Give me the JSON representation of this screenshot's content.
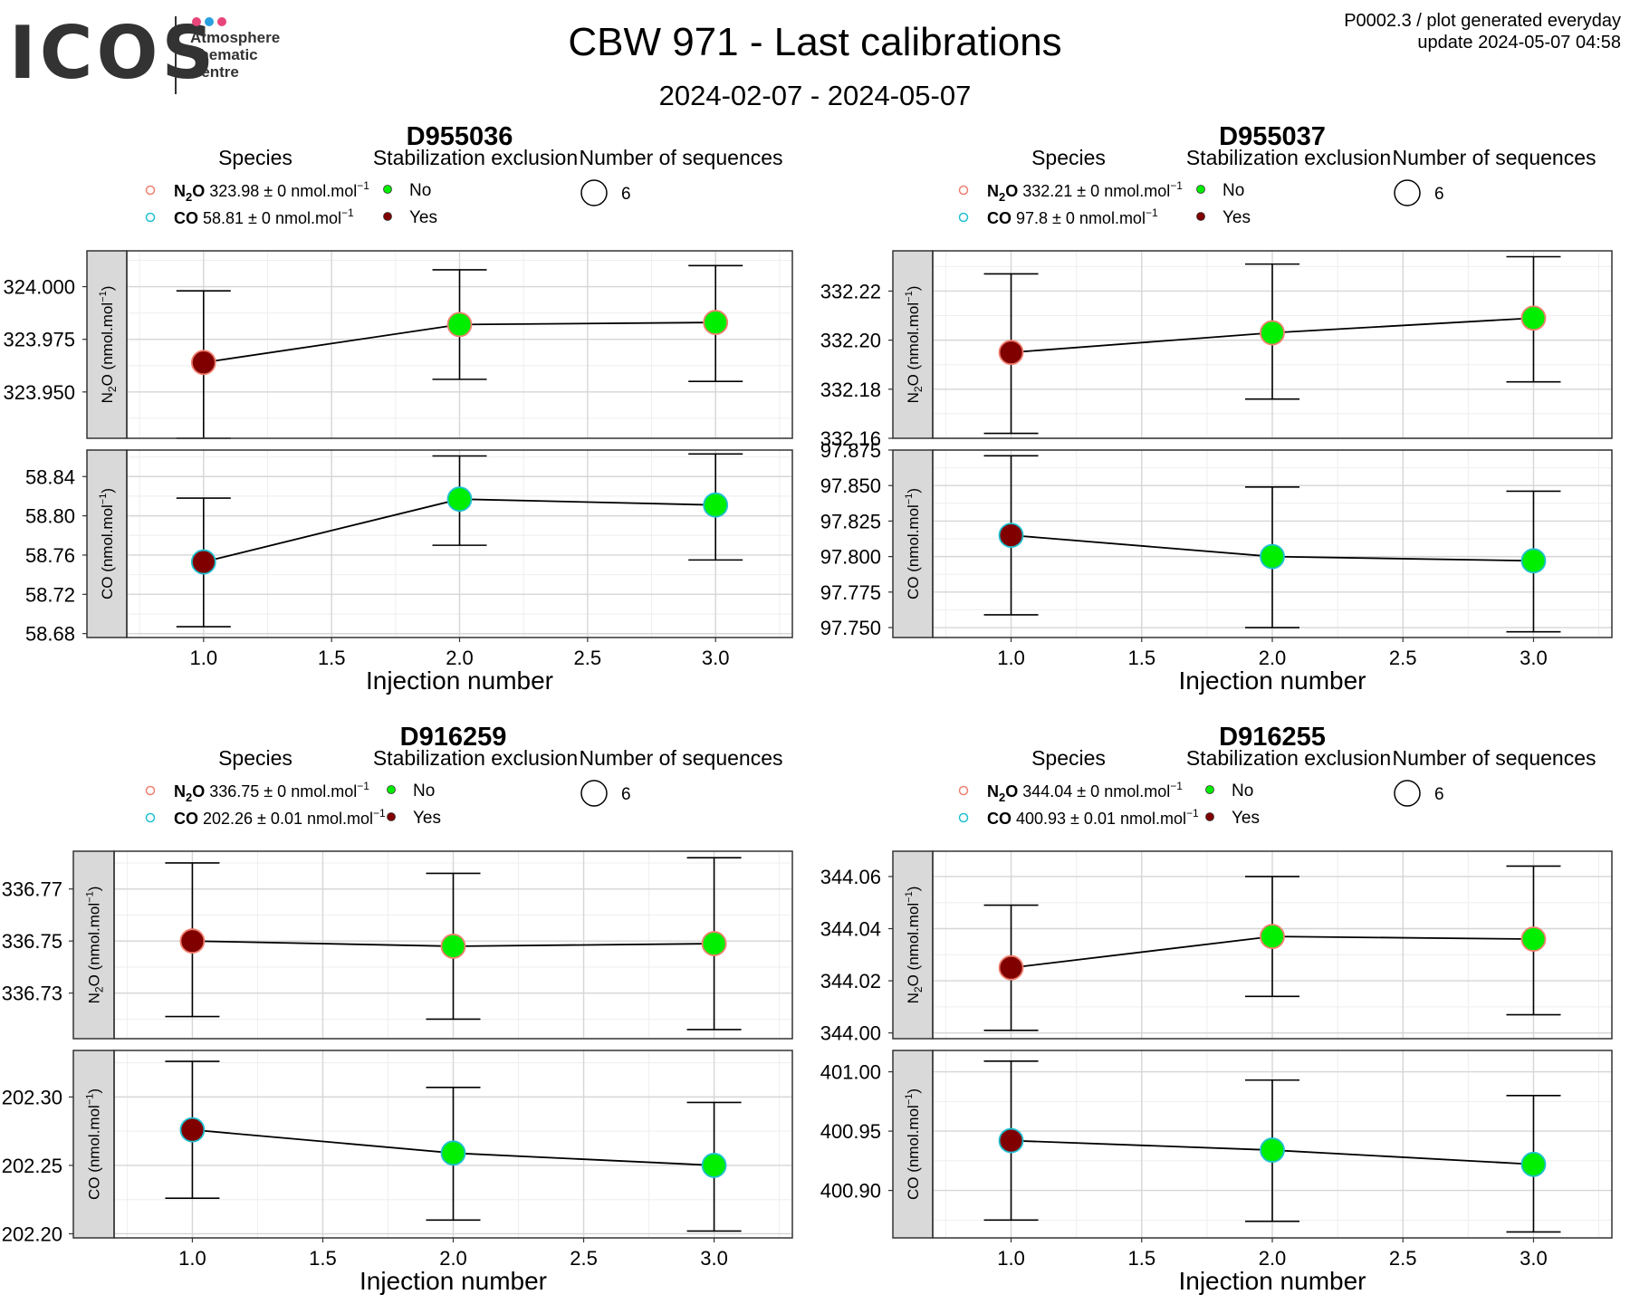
{
  "header": {
    "logo_text": "ICOS",
    "logo_subtitle": [
      "Atmosphere",
      "Thematic",
      "Centre"
    ],
    "logo_dot_colors": [
      "#e8457a",
      "#2aa0e0",
      "#e8457a"
    ],
    "title": "CBW 971 - Last calibrations",
    "date_range": "2024-02-07 - 2024-05-07",
    "corner_line1": "P0002.3 / plot generated everyday",
    "corner_line2": "update  2024-05-07 04:58"
  },
  "legend_labels": {
    "species": "Species",
    "stabilization": "Stabilization exclusion",
    "sequences": "Number of sequences",
    "no": "No",
    "yes": "Yes",
    "unit": "nmol.mol"
  },
  "colors": {
    "no": "#00ee00",
    "yes": "#800000",
    "n2o": "#f08070",
    "co": "#20c0d0",
    "strip": "#d9d9d9",
    "grid_major": "#d6d6d6",
    "grid_minor": "#eeeeee"
  },
  "chart_data": [
    {
      "type": "scatter",
      "title": "D955036",
      "xlabel": "Injection number",
      "x": [
        1,
        2,
        3
      ],
      "xlim": [
        0.7,
        3.3
      ],
      "xticks": [
        "1.0",
        "1.5",
        "2.0",
        "2.5",
        "3.0"
      ],
      "sequences": 6,
      "legend": {
        "n2o_value": "323.98",
        "n2o_unc": "0",
        "co_value": "58.81",
        "co_unc": "0"
      },
      "panels": [
        {
          "strip": "N2O (nmol.mol-1)",
          "species": "n2o",
          "ylim": [
            323.928,
            324.017
          ],
          "yticks": [
            "323.950",
            "323.975",
            "324.000"
          ],
          "values": [
            323.964,
            323.982,
            323.983
          ],
          "err_low": [
            323.928,
            323.956,
            323.955
          ],
          "err_high": [
            323.998,
            324.008,
            324.01
          ],
          "excluded": [
            "Yes",
            "No",
            "No"
          ]
        },
        {
          "strip": "CO (nmol.mol-1)",
          "species": "co",
          "ylim": [
            58.676,
            58.867
          ],
          "yticks": [
            "58.68",
            "58.72",
            "58.76",
            "58.80",
            "58.84"
          ],
          "values": [
            58.753,
            58.817,
            58.811
          ],
          "err_low": [
            58.687,
            58.77,
            58.755
          ],
          "err_high": [
            58.818,
            58.861,
            58.863
          ],
          "excluded": [
            "Yes",
            "No",
            "No"
          ]
        }
      ]
    },
    {
      "type": "scatter",
      "title": "D955037",
      "xlabel": "Injection number",
      "x": [
        1,
        2,
        3
      ],
      "xlim": [
        0.7,
        3.3
      ],
      "xticks": [
        "1.0",
        "1.5",
        "2.0",
        "2.5",
        "3.0"
      ],
      "sequences": 6,
      "legend": {
        "n2o_value": "332.21",
        "n2o_unc": "0",
        "co_value": "97.8",
        "co_unc": "0"
      },
      "panels": [
        {
          "strip": "N2O (nmol.mol-1)",
          "species": "n2o",
          "ylim": [
            332.16,
            332.2364
          ],
          "yticks": [
            "332.16",
            "332.18",
            "332.20",
            "332.22"
          ],
          "values": [
            332.195,
            332.203,
            332.209
          ],
          "err_low": [
            332.162,
            332.176,
            332.183
          ],
          "err_high": [
            332.227,
            332.231,
            332.234
          ],
          "excluded": [
            "Yes",
            "No",
            "No"
          ]
        },
        {
          "strip": "CO (nmol.mol-1)",
          "species": "co",
          "ylim": [
            97.743,
            97.875
          ],
          "yticks": [
            "97.750",
            "97.775",
            "97.800",
            "97.825",
            "97.850",
            "97.875"
          ],
          "values": [
            97.815,
            97.8,
            97.797
          ],
          "err_low": [
            97.759,
            97.75,
            97.747
          ],
          "err_high": [
            97.871,
            97.849,
            97.846
          ],
          "excluded": [
            "Yes",
            "No",
            "No"
          ]
        }
      ]
    },
    {
      "type": "scatter",
      "title": "D916259",
      "xlabel": "Injection number",
      "x": [
        1,
        2,
        3
      ],
      "xlim": [
        0.7,
        3.3
      ],
      "xticks": [
        "1.0",
        "1.5",
        "2.0",
        "2.5",
        "3.0"
      ],
      "sequences": 6,
      "legend": {
        "n2o_value": "336.75",
        "n2o_unc": "0",
        "co_value": "202.26",
        "co_unc": "0.01"
      },
      "panels": [
        {
          "strip": "N2O (nmol.mol-1)",
          "species": "n2o",
          "ylim": [
            336.7125,
            336.7845
          ],
          "yticks": [
            "336.73",
            "336.75",
            "336.77"
          ],
          "values": [
            336.75,
            336.748,
            336.749
          ],
          "err_low": [
            336.721,
            336.72,
            336.716
          ],
          "err_high": [
            336.78,
            336.776,
            336.782
          ],
          "excluded": [
            "Yes",
            "No",
            "No"
          ]
        },
        {
          "strip": "CO (nmol.mol-1)",
          "species": "co",
          "ylim": [
            202.197,
            202.334
          ],
          "yticks": [
            "202.20",
            "202.25",
            "202.30"
          ],
          "values": [
            202.276,
            202.259,
            202.25
          ],
          "err_low": [
            202.226,
            202.21,
            202.202
          ],
          "err_high": [
            202.326,
            202.307,
            202.296
          ],
          "excluded": [
            "Yes",
            "No",
            "No"
          ]
        }
      ]
    },
    {
      "type": "scatter",
      "title": "D916255",
      "xlabel": "Injection number",
      "x": [
        1,
        2,
        3
      ],
      "xlim": [
        0.7,
        3.3
      ],
      "xticks": [
        "1.0",
        "1.5",
        "2.0",
        "2.5",
        "3.0"
      ],
      "sequences": 6,
      "legend": {
        "n2o_value": "344.04",
        "n2o_unc": "0",
        "co_value": "400.93",
        "co_unc": "0.01"
      },
      "panels": [
        {
          "strip": "N2O (nmol.mol-1)",
          "species": "n2o",
          "ylim": [
            343.9978,
            344.0697
          ],
          "yticks": [
            "344.00",
            "344.02",
            "344.04",
            "344.06"
          ],
          "values": [
            344.025,
            344.037,
            344.036
          ],
          "err_low": [
            344.001,
            344.014,
            344.007
          ],
          "err_high": [
            344.049,
            344.06,
            344.064
          ],
          "excluded": [
            "Yes",
            "No",
            "No"
          ]
        },
        {
          "strip": "CO (nmol.mol-1)",
          "species": "co",
          "ylim": [
            400.86,
            401.018
          ],
          "yticks": [
            "400.90",
            "400.95",
            "401.00"
          ],
          "values": [
            400.942,
            400.934,
            400.922
          ],
          "err_low": [
            400.875,
            400.874,
            400.865
          ],
          "err_high": [
            401.009,
            400.993,
            400.98
          ],
          "excluded": [
            "Yes",
            "No",
            "No"
          ]
        }
      ]
    }
  ]
}
